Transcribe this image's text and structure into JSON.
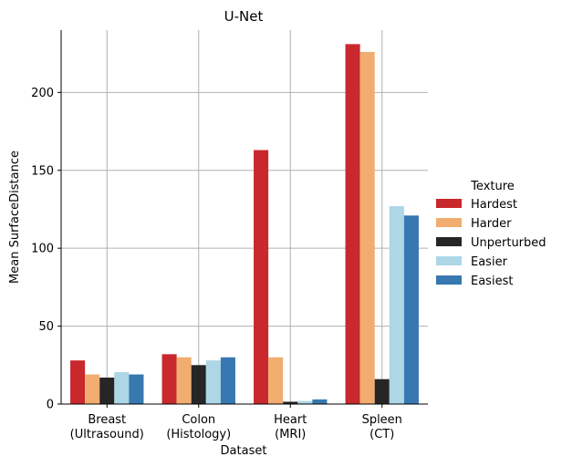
{
  "chart_data": {
    "type": "bar",
    "title": "U-Net",
    "xlabel": "Dataset",
    "ylabel": "Mean SurfaceDistance",
    "categories": [
      [
        "Breast",
        "(Ultrasound)"
      ],
      [
        "Colon",
        "(Histology)"
      ],
      [
        "Heart",
        "(MRI)"
      ],
      [
        "Spleen",
        "(CT)"
      ]
    ],
    "ylim": [
      0,
      240
    ],
    "yticks": [
      0,
      50,
      100,
      150,
      200
    ],
    "grid": true,
    "legend_position": "right",
    "legend_title": "Texture",
    "series": [
      {
        "name": "Hardest",
        "color": "#c9282d",
        "values": [
          28,
          32,
          163,
          231
        ]
      },
      {
        "name": "Harder",
        "color": "#f0ad6f",
        "values": [
          19,
          30,
          30,
          226
        ]
      },
      {
        "name": "Unperturbed",
        "color": "#262626",
        "values": [
          17,
          25,
          1.5,
          16
        ]
      },
      {
        "name": "Easier",
        "color": "#add6e6",
        "values": [
          20.5,
          28,
          2,
          127
        ]
      },
      {
        "name": "Easiest",
        "color": "#3778b0",
        "values": [
          19,
          30,
          3,
          121
        ]
      }
    ]
  }
}
